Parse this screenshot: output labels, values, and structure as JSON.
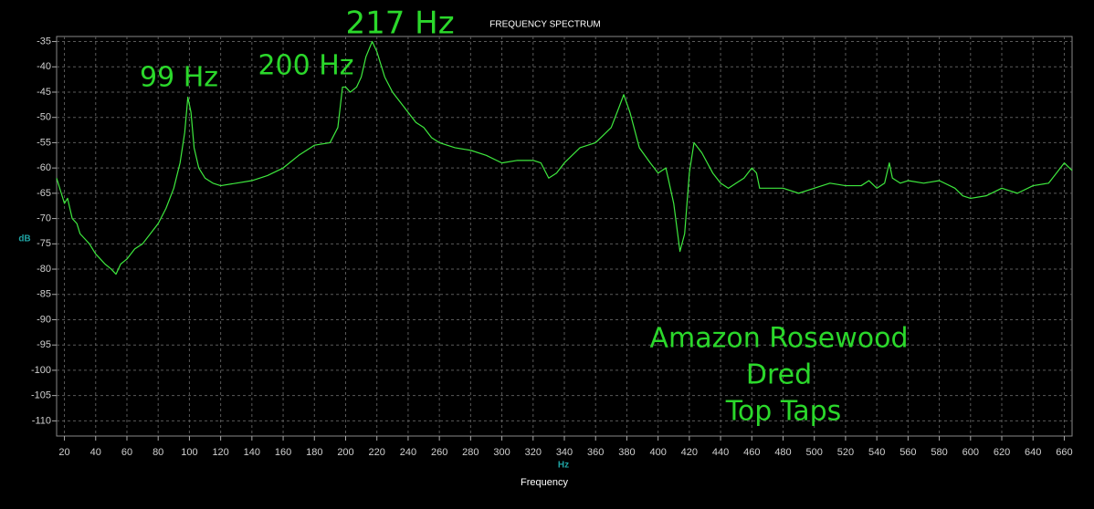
{
  "chart_data": {
    "type": "line",
    "title": "FREQUENCY SPECTRUM",
    "x_label": "Frequency",
    "x_unit": "Hz",
    "y_unit": "dB",
    "annotations": [
      "217 Hz",
      "200 Hz",
      "99 Hz",
      "Amazon Rosewood",
      "Dred",
      "Top Taps"
    ],
    "color": "#3ee83e",
    "grid": true,
    "xlim": [
      15,
      665
    ],
    "ylim": [
      -113,
      -34
    ],
    "xticks": [
      20,
      40,
      60,
      80,
      100,
      120,
      140,
      160,
      180,
      200,
      220,
      240,
      260,
      280,
      300,
      320,
      340,
      360,
      380,
      400,
      420,
      440,
      460,
      480,
      500,
      520,
      540,
      560,
      580,
      600,
      620,
      640,
      660
    ],
    "yticks": [
      -35,
      -40,
      -45,
      -50,
      -55,
      -60,
      -65,
      -70,
      -75,
      -80,
      -85,
      -90,
      -95,
      -100,
      -105,
      -110
    ],
    "x": [
      15,
      18,
      20,
      22,
      25,
      28,
      30,
      33,
      36,
      40,
      43,
      46,
      50,
      53,
      56,
      60,
      65,
      70,
      75,
      80,
      85,
      90,
      94,
      97,
      99,
      101,
      103,
      106,
      110,
      115,
      120,
      130,
      140,
      150,
      160,
      170,
      180,
      190,
      195,
      198,
      200,
      203,
      207,
      210,
      213,
      217,
      220,
      225,
      230,
      240,
      245,
      250,
      255,
      260,
      270,
      280,
      290,
      300,
      310,
      320,
      325,
      330,
      335,
      340,
      350,
      360,
      370,
      375,
      378,
      382,
      388,
      395,
      400,
      405,
      410,
      414,
      417,
      420,
      423,
      428,
      435,
      440,
      445,
      450,
      455,
      460,
      463,
      465,
      470,
      480,
      490,
      500,
      510,
      520,
      530,
      535,
      540,
      545,
      548,
      550,
      555,
      560,
      570,
      580,
      590,
      595,
      600,
      610,
      620,
      630,
      640,
      650,
      655,
      660,
      665
    ],
    "values": [
      -62,
      -65,
      -67,
      -66,
      -70,
      -71,
      -73,
      -74,
      -75,
      -77,
      -78,
      -79,
      -80,
      -81,
      -79,
      -78,
      -76,
      -75,
      -73,
      -71,
      -68,
      -64,
      -59,
      -53,
      -46,
      -49,
      -56,
      -60,
      -62,
      -63,
      -63.5,
      -63,
      -62.5,
      -61.5,
      -60,
      -57.5,
      -55.5,
      -55,
      -52,
      -44,
      -44,
      -45,
      -44,
      -42,
      -38,
      -35,
      -37,
      -42,
      -45,
      -49,
      -51,
      -52,
      -54,
      -55,
      -56,
      -56.5,
      -57.5,
      -59,
      -58.5,
      -58.5,
      -59,
      -62,
      -61,
      -59,
      -56,
      -55,
      -52,
      -48,
      -45.5,
      -49,
      -56,
      -59,
      -61,
      -60,
      -67,
      -76.5,
      -73,
      -61,
      -55,
      -57,
      -61,
      -63,
      -64,
      -63,
      -62,
      -60,
      -61,
      -64,
      -64,
      -64,
      -65,
      -64,
      -63,
      -63.5,
      -63.5,
      -62.5,
      -64,
      -63,
      -59,
      -62,
      -63,
      -62.5,
      -63,
      -62.5,
      -64,
      -65.5,
      -66,
      -65.5,
      -64,
      -65,
      -63.5,
      -63,
      -61,
      -59,
      -60.5
    ]
  }
}
